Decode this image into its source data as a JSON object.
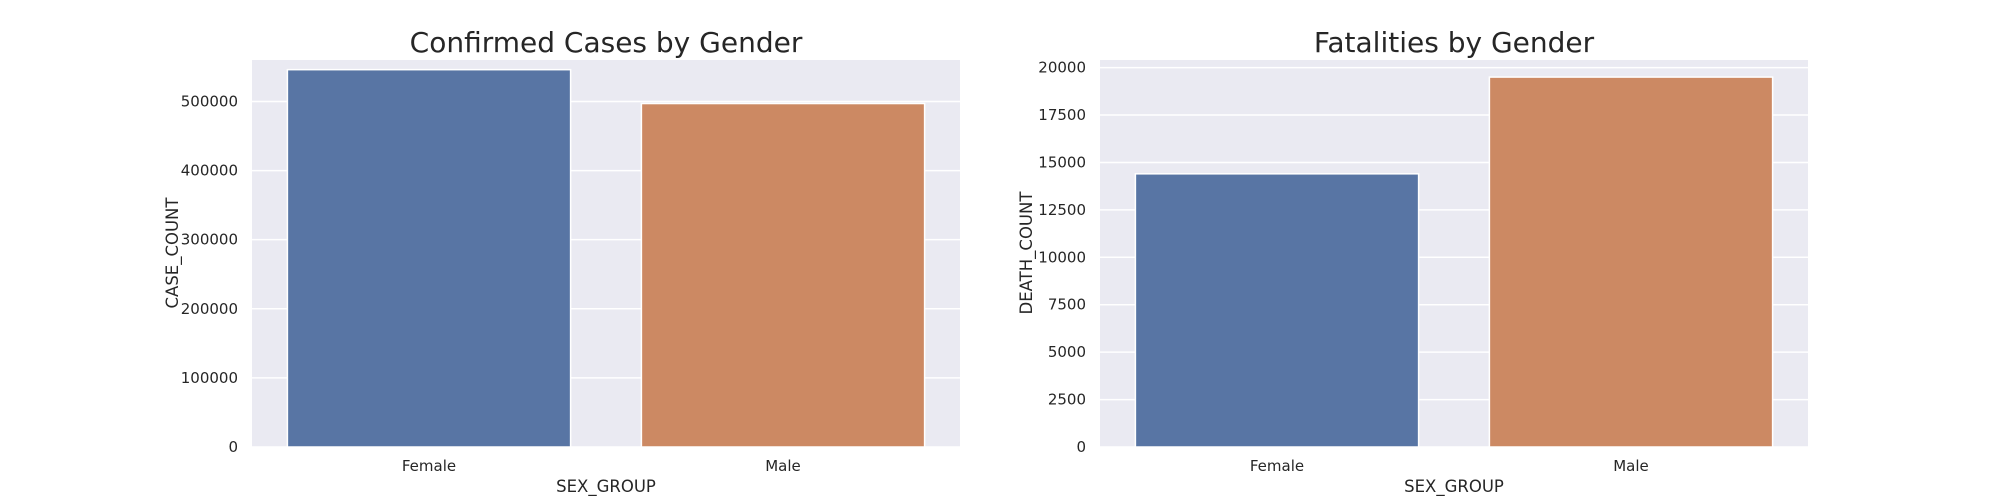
{
  "chart_data": [
    {
      "type": "bar",
      "title": "Confirmed Cases by Gender",
      "xlabel": "SEX_GROUP",
      "ylabel": "CASE_COUNT",
      "categories": [
        "Female",
        "Male"
      ],
      "values": [
        546000,
        497000
      ],
      "colors": [
        "#5875a4",
        "#cc8963"
      ],
      "ylim": [
        0,
        560000
      ],
      "yticks": [
        0,
        100000,
        200000,
        300000,
        400000,
        500000
      ],
      "ytick_labels": [
        "0",
        "100000",
        "200000",
        "300000",
        "400000",
        "500000"
      ],
      "grid": true
    },
    {
      "type": "bar",
      "title": "Fatalities by Gender",
      "xlabel": "SEX_GROUP",
      "ylabel": "DEATH_COUNT",
      "categories": [
        "Female",
        "Male"
      ],
      "values": [
        14400,
        19500
      ],
      "colors": [
        "#5875a4",
        "#cc8963"
      ],
      "ylim": [
        0,
        20400
      ],
      "yticks": [
        0,
        2500,
        5000,
        7500,
        10000,
        12500,
        15000,
        17500,
        20000
      ],
      "ytick_labels": [
        "0",
        "2500",
        "5000",
        "7500",
        "10000",
        "12500",
        "15000",
        "17500",
        "20000"
      ],
      "grid": true
    }
  ]
}
